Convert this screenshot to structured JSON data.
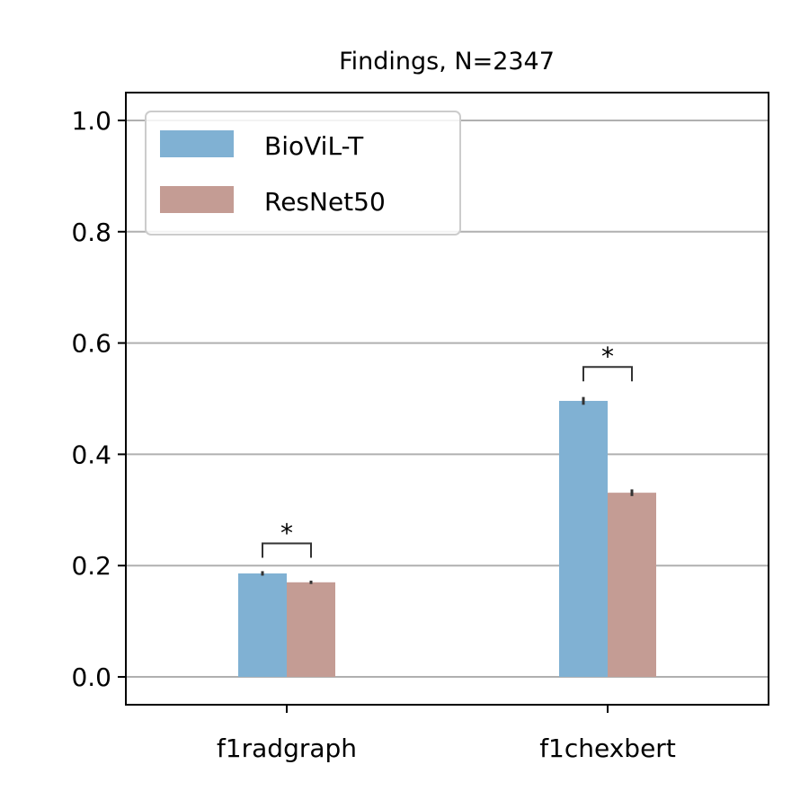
{
  "chart_data": {
    "type": "bar",
    "title": "Findings, N=2347",
    "xlabel": "",
    "ylabel": "",
    "categories": [
      "f1radgraph",
      "f1chexbert"
    ],
    "series": [
      {
        "name": "BioViL-T",
        "values": [
          0.186,
          0.496
        ],
        "errors": [
          0.004,
          0.007
        ],
        "color": "#80b1d3"
      },
      {
        "name": "ResNet50",
        "values": [
          0.17,
          0.331
        ],
        "errors": [
          0.003,
          0.006
        ],
        "color": "#c49c94"
      }
    ],
    "ylim": [
      -0.05,
      1.05
    ],
    "yticks": [
      0.0,
      0.2,
      0.4,
      0.6,
      0.8,
      1.0
    ],
    "ytick_labels": [
      "0.0",
      "0.2",
      "0.4",
      "0.6",
      "0.8",
      "1.0"
    ],
    "grid": "y",
    "legend_position": "top-left",
    "significance": [
      {
        "category": "f1radgraph",
        "label": "*",
        "bracket_top": 0.24
      },
      {
        "category": "f1chexbert",
        "label": "*",
        "bracket_top": 0.557
      }
    ]
  }
}
